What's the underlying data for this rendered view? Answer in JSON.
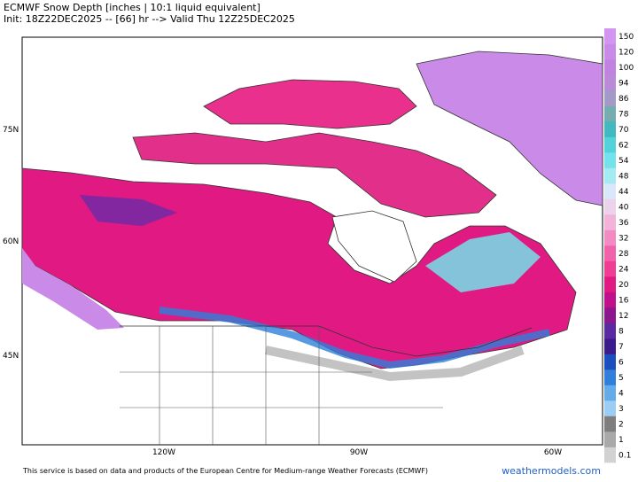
{
  "header": {
    "title": "ECMWF Snow Depth [inches | 10:1 liquid equivalent]",
    "subtitle": "Init: 18Z22DEC2025 -- [66] hr --> Valid Thu 12Z25DEC2025"
  },
  "map": {
    "lat_labels": [
      "75N",
      "60N",
      "45N"
    ],
    "lon_labels": [
      "120W",
      "90W",
      "60W"
    ]
  },
  "legend": [
    {
      "label": "0.1",
      "color": "#d2d2d2"
    },
    {
      "label": "1",
      "color": "#a9a9a9"
    },
    {
      "label": "2",
      "color": "#7e7e7e"
    },
    {
      "label": "3",
      "color": "#9ccdf3"
    },
    {
      "label": "4",
      "color": "#63ace9"
    },
    {
      "label": "5",
      "color": "#2f80da"
    },
    {
      "label": "6",
      "color": "#1b4fc0"
    },
    {
      "label": "7",
      "color": "#3b1a8c"
    },
    {
      "label": "8",
      "color": "#5b2aa2"
    },
    {
      "label": "12",
      "color": "#8c168c"
    },
    {
      "label": "16",
      "color": "#c0108a"
    },
    {
      "label": "20",
      "color": "#e01a82"
    },
    {
      "label": "24",
      "color": "#f03c92"
    },
    {
      "label": "28",
      "color": "#f262aa"
    },
    {
      "label": "32",
      "color": "#f38ac2"
    },
    {
      "label": "36",
      "color": "#f3b2d9"
    },
    {
      "label": "40",
      "color": "#ecd2ea"
    },
    {
      "label": "44",
      "color": "#d8e8f8"
    },
    {
      "label": "48",
      "color": "#a4eaf2"
    },
    {
      "label": "54",
      "color": "#74e2ea"
    },
    {
      "label": "62",
      "color": "#52d2da"
    },
    {
      "label": "70",
      "color": "#42b8c0"
    },
    {
      "label": "78",
      "color": "#74acb0"
    },
    {
      "label": "86",
      "color": "#a49ac8"
    },
    {
      "label": "94",
      "color": "#b88ad8"
    },
    {
      "label": "100",
      "color": "#c282e2"
    },
    {
      "label": "120",
      "color": "#ca8aea"
    },
    {
      "label": "150",
      "color": "#d494f2"
    }
  ],
  "footer": {
    "notice": "This service is based on data and products of the European Centre for Medium-range Weather Forecasts (ECMWF)",
    "site": "weathermodels.com"
  }
}
